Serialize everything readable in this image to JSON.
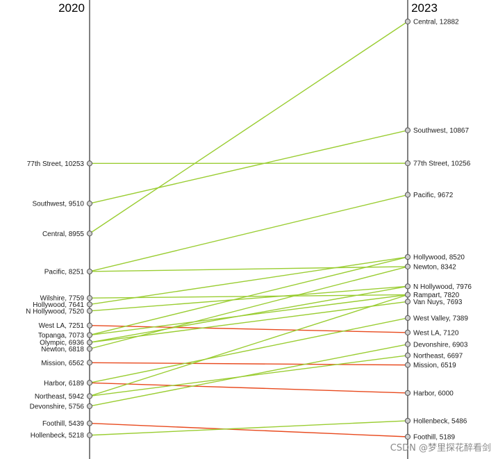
{
  "chart_data": {
    "type": "line",
    "x": [
      "2020",
      "2023"
    ],
    "ylim": [
      5000,
      13100
    ],
    "grid": false,
    "colors": {
      "increase": "#9acd32",
      "decrease": "#e8491d",
      "axis": "#000000",
      "point_fill": "#cccccc",
      "point_stroke": "#555555"
    },
    "series": [
      {
        "name": "77th Street",
        "values": [
          10253,
          10256
        ]
      },
      {
        "name": "Southwest",
        "values": [
          9510,
          10867
        ]
      },
      {
        "name": "Central",
        "values": [
          8955,
          12882
        ]
      },
      {
        "name": "Pacific",
        "values": [
          8251,
          9672
        ]
      },
      {
        "name": "Newton",
        "values": [
          6818,
          8342
        ]
      },
      {
        "name": "Wilshire",
        "values": [
          7759,
          null
        ]
      },
      {
        "name": "Hollywood",
        "values": [
          7641,
          8520
        ]
      },
      {
        "name": "N Hollywood",
        "values": [
          7520,
          7976
        ]
      },
      {
        "name": "Rampart",
        "values": [
          null,
          7820
        ]
      },
      {
        "name": "Van Nuys",
        "values": [
          null,
          7693
        ]
      },
      {
        "name": "West LA",
        "values": [
          7251,
          7120
        ]
      },
      {
        "name": "Topanga",
        "values": [
          7073,
          null
        ]
      },
      {
        "name": "Olympic",
        "values": [
          6936,
          null
        ]
      },
      {
        "name": "West Valley",
        "values": [
          null,
          7389
        ]
      },
      {
        "name": "Mission",
        "values": [
          6562,
          6519
        ]
      },
      {
        "name": "Harbor",
        "values": [
          6189,
          6000
        ]
      },
      {
        "name": "Northeast",
        "values": [
          5942,
          6697
        ]
      },
      {
        "name": "Devonshire",
        "values": [
          5756,
          6903
        ]
      },
      {
        "name": "Foothill",
        "values": [
          5439,
          5189
        ]
      },
      {
        "name": "Hollenbeck",
        "values": [
          5218,
          5486
        ]
      }
    ],
    "extra_lines": [
      [
        8251,
        8342
      ],
      [
        7759,
        7820
      ],
      [
        7073,
        7820
      ],
      [
        6936,
        7693
      ],
      [
        7073,
        8520
      ],
      [
        6936,
        7976
      ],
      [
        6189,
        7389
      ],
      [
        5942,
        7820
      ]
    ]
  },
  "watermark": "CSDN @梦里探花醉看剑"
}
